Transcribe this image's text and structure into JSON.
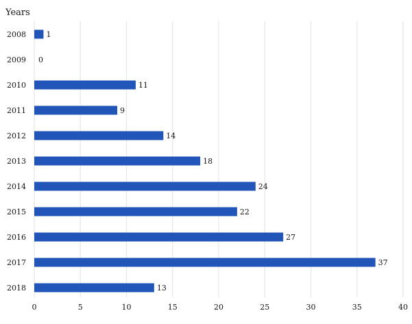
{
  "chart_data": {
    "type": "bar",
    "orientation": "horizontal",
    "title": "",
    "ylabel": "Years",
    "xlabel": "",
    "categories": [
      "2008",
      "2009",
      "2010",
      "2011",
      "2012",
      "2013",
      "2014",
      "2015",
      "2016",
      "2017",
      "2018"
    ],
    "values": [
      1,
      0,
      11,
      9,
      14,
      18,
      24,
      22,
      27,
      37,
      13
    ],
    "xlim": [
      0,
      40
    ],
    "xticks": [
      0,
      5,
      10,
      15,
      20,
      25,
      30,
      35,
      40
    ],
    "grid": "vertical",
    "legend": "none",
    "data_labels": true,
    "colors": {
      "bar": "#2255b8",
      "grid": "#e6e6e6",
      "text": "#111111"
    }
  }
}
